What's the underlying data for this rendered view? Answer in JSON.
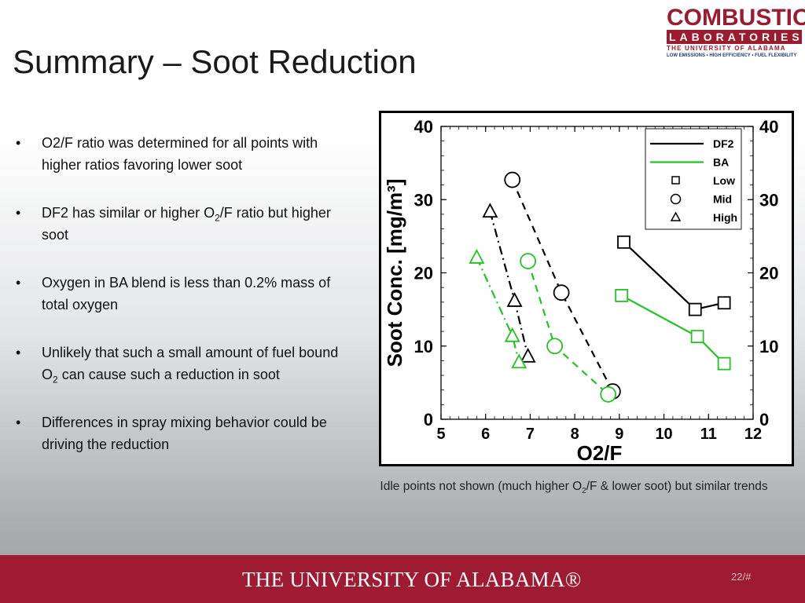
{
  "slide": {
    "title": "Summary – Soot Reduction",
    "page_number": "22/#",
    "university": "THE UNIVERSITY OF ALABAMA®"
  },
  "logo": {
    "line1": "COMBUSTION",
    "line2": "LABORATORIES",
    "line3": "THE UNIVERSITY OF ALABAMA",
    "line4": "LOW EMISSIONS • HIGH EFFICIENCY • FUEL FLEXIBILITY"
  },
  "bullets": [
    {
      "pre": "O2/F ratio was determined for all points with higher ratios favoring lower soot",
      "sub": "",
      "post": ""
    },
    {
      "pre": "DF2 has similar or higher O",
      "sub": "2",
      "post": "/F ratio but higher soot"
    },
    {
      "pre": "Oxygen in BA blend is less than 0.2% mass of total oxygen",
      "sub": "",
      "post": ""
    },
    {
      "pre": "Unlikely that such a small amount of fuel bound O",
      "sub": "2",
      "post": " can cause such a reduction in soot"
    },
    {
      "pre": "Differences in spray mixing behavior could be driving the reduction",
      "sub": "",
      "post": ""
    }
  ],
  "caption": {
    "pre": "Idle points not shown (much higher O",
    "sub": "2",
    "post": "/F & lower soot) but similar trends"
  },
  "chart_data": {
    "type": "line",
    "xlabel": "O2/F",
    "ylabel": "Soot Conc. [mg/m³]",
    "xlim": [
      5,
      12
    ],
    "ylim": [
      0,
      40
    ],
    "x_ticks": [
      5,
      6,
      7,
      8,
      9,
      10,
      11,
      12
    ],
    "y_ticks": [
      0,
      10,
      20,
      30,
      40
    ],
    "grid": false,
    "legend_position": "top-right",
    "legend": [
      {
        "label": "DF2",
        "kind": "line",
        "color": "#000000"
      },
      {
        "label": "BA",
        "kind": "line",
        "color": "#22c322"
      },
      {
        "label": "Low",
        "kind": "marker",
        "marker": "square"
      },
      {
        "label": "Mid",
        "kind": "marker",
        "marker": "circle"
      },
      {
        "label": "High",
        "kind": "marker",
        "marker": "triangle"
      }
    ],
    "series": [
      {
        "fuel": "DF2",
        "load": "Low",
        "marker": "square",
        "dash": "solid",
        "color": "#000000",
        "points": [
          {
            "x": 9.1,
            "y": 24.2
          },
          {
            "x": 10.7,
            "y": 15.0
          },
          {
            "x": 11.35,
            "y": 15.9
          }
        ]
      },
      {
        "fuel": "DF2",
        "load": "Mid",
        "marker": "circle",
        "dash": "dash",
        "color": "#000000",
        "points": [
          {
            "x": 6.6,
            "y": 32.7
          },
          {
            "x": 7.7,
            "y": 17.3
          },
          {
            "x": 8.85,
            "y": 3.8
          }
        ]
      },
      {
        "fuel": "DF2",
        "load": "High",
        "marker": "triangle",
        "dash": "dashdot",
        "color": "#000000",
        "points": [
          {
            "x": 6.1,
            "y": 28.4
          },
          {
            "x": 6.65,
            "y": 16.2
          },
          {
            "x": 6.95,
            "y": 8.6
          }
        ]
      },
      {
        "fuel": "BA",
        "load": "Low",
        "marker": "square",
        "dash": "solid",
        "color": "#22c322",
        "points": [
          {
            "x": 9.05,
            "y": 16.9
          },
          {
            "x": 10.75,
            "y": 11.3
          },
          {
            "x": 11.35,
            "y": 7.6
          }
        ]
      },
      {
        "fuel": "BA",
        "load": "Mid",
        "marker": "circle",
        "dash": "dash",
        "color": "#22c322",
        "points": [
          {
            "x": 6.95,
            "y": 21.6
          },
          {
            "x": 7.55,
            "y": 10.0
          },
          {
            "x": 8.75,
            "y": 3.4
          }
        ]
      },
      {
        "fuel": "BA",
        "load": "High",
        "marker": "triangle",
        "dash": "dashdot",
        "color": "#22c322",
        "points": [
          {
            "x": 5.8,
            "y": 22.1
          },
          {
            "x": 6.6,
            "y": 11.4
          },
          {
            "x": 6.75,
            "y": 7.8
          }
        ]
      }
    ]
  }
}
